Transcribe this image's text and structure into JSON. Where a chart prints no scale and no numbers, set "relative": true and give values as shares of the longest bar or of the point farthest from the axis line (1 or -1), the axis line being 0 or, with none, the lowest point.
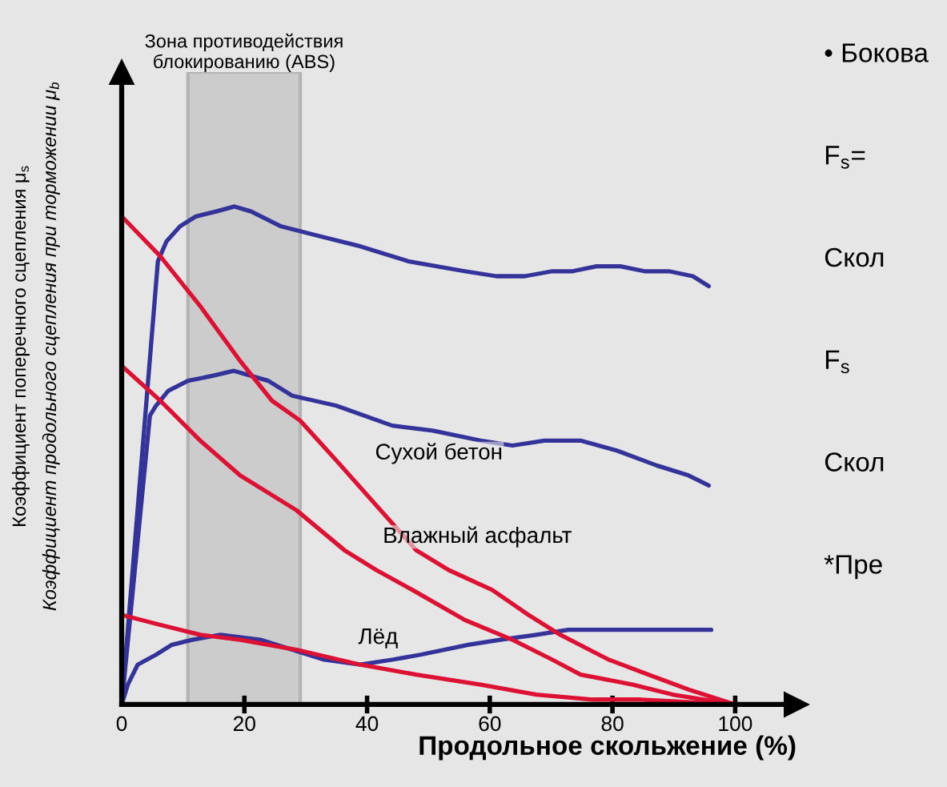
{
  "chart_data": {
    "type": "line",
    "relative": true,
    "xlabel": "Продольное скольжение (%)",
    "ylabel": "Коэффициент поперечного сцепления μ$_{s}$\nКоэффициент продольного сцепления при торможении μ$_{b}$",
    "xlim": [
      0,
      110
    ],
    "xticks": [
      0,
      20,
      40,
      60,
      80,
      100
    ],
    "grid": false,
    "legend": false,
    "marker": "none",
    "line_style": "solid",
    "bands": [
      {
        "axis": "x",
        "from": 10.8,
        "to": 29.1,
        "label": "Зона противодействия\nблокированию (ABS)",
        "color": "#cccccc"
      }
    ],
    "series": [
      {
        "color": "#333399",
        "x": [
          0,
          5.9,
          7.3,
          9.5,
          12.1,
          15.4,
          18.4,
          21.1,
          26.0,
          32.4,
          38.9,
          46.7,
          55.9,
          61.1,
          65.7,
          70.2,
          73.5,
          77.4,
          81.3,
          85.2,
          89.2,
          93.1,
          95.7
        ],
        "values": [
          0,
          0.89,
          0.93,
          0.96,
          0.98,
          0.99,
          1.0,
          0.99,
          0.96,
          0.94,
          0.92,
          0.89,
          0.87,
          0.86,
          0.86,
          0.87,
          0.87,
          0.88,
          0.88,
          0.87,
          0.87,
          0.86,
          0.84
        ]
      },
      {
        "color": "#333399",
        "x": [
          0,
          4.6,
          5.6,
          7.6,
          10.8,
          14.8,
          18.3,
          23.9,
          27.8,
          35.0,
          44.1,
          50.7,
          58.5,
          63.7,
          68.9,
          71.5,
          74.8,
          80.7,
          87.2,
          92.4,
          95.7
        ],
        "values": [
          0,
          0.58,
          0.6,
          0.63,
          0.65,
          0.66,
          0.67,
          0.65,
          0.62,
          0.6,
          0.56,
          0.55,
          0.53,
          0.52,
          0.53,
          0.53,
          0.53,
          0.51,
          0.48,
          0.46,
          0.44
        ]
      },
      {
        "color": "#333399",
        "x": [
          0,
          1.0,
          2.6,
          5.6,
          8.2,
          11.5,
          16.1,
          22.6,
          27.8,
          33.0,
          38.9,
          44.1,
          48.7,
          56.5,
          61.7,
          67.6,
          72.8,
          78.1,
          83.3,
          96.1
        ],
        "values": [
          0,
          0.04,
          0.08,
          0.1,
          0.12,
          0.13,
          0.14,
          0.13,
          0.11,
          0.09,
          0.08,
          0.09,
          0.1,
          0.12,
          0.13,
          0.14,
          0.15,
          0.15,
          0.15,
          0.15
        ]
      },
      {
        "color": "#dd1133",
        "x": [
          0,
          6.3,
          12.8,
          19.3,
          24.5,
          29.1,
          35.0,
          41.5,
          48.0,
          53.3,
          60.4,
          66.3,
          71.5,
          79.4,
          85.9,
          92.4,
          100
        ],
        "values": [
          0.98,
          0.9,
          0.8,
          0.69,
          0.61,
          0.57,
          0.49,
          0.4,
          0.31,
          0.27,
          0.23,
          0.18,
          0.14,
          0.09,
          0.06,
          0.03,
          0.0
        ]
      },
      {
        "color": "#dd1133",
        "x": [
          0,
          6.3,
          12.8,
          19.3,
          28.5,
          36.3,
          41.5,
          47.4,
          55.9,
          63.7,
          70.2,
          74.8,
          83.3,
          89.8,
          100
        ],
        "values": [
          0.68,
          0.61,
          0.53,
          0.46,
          0.39,
          0.31,
          0.27,
          0.23,
          0.17,
          0.13,
          0.09,
          0.06,
          0.04,
          0.02,
          0.0
        ]
      },
      {
        "color": "#dd1133",
        "x": [
          0,
          6.3,
          12.8,
          19.3,
          28.5,
          38.9,
          48.0,
          58.5,
          67.6,
          76.8,
          84.6,
          100
        ],
        "values": [
          0.18,
          0.16,
          0.14,
          0.13,
          0.11,
          0.08,
          0.06,
          0.04,
          0.02,
          0.01,
          0.01,
          0.0
        ]
      }
    ],
    "annotations": [
      "Сухой бетон",
      "Влажный асфальт",
      "Лёд",
      "• Бокова",
      "F$_{s}$=",
      "Скол",
      "F$_{s}$",
      "Скол",
      "*Пре"
    ]
  }
}
